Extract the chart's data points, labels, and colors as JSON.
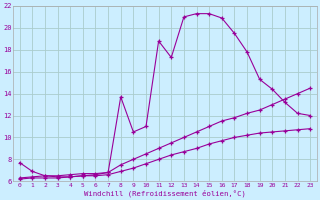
{
  "xlabel": "Windchill (Refroidissement éolien,°C)",
  "bg_color": "#cceeff",
  "grid_color": "#aacccc",
  "line_color": "#990099",
  "xlim": [
    -0.5,
    23.5
  ],
  "ylim": [
    6,
    22
  ],
  "yticks": [
    6,
    8,
    10,
    12,
    14,
    16,
    18,
    20,
    22
  ],
  "xticks": [
    0,
    1,
    2,
    3,
    4,
    5,
    6,
    7,
    8,
    9,
    10,
    11,
    12,
    13,
    14,
    15,
    16,
    17,
    18,
    19,
    20,
    21,
    22,
    23
  ],
  "series1_x": [
    0,
    1,
    2,
    3,
    4,
    5,
    6,
    7,
    8,
    9,
    10,
    11,
    12,
    13,
    14,
    15,
    16,
    17,
    18,
    19,
    20,
    21,
    22,
    23
  ],
  "series1_y": [
    7.7,
    6.9,
    6.5,
    6.4,
    6.4,
    6.5,
    6.6,
    6.8,
    13.7,
    10.5,
    11.0,
    18.8,
    17.3,
    21.0,
    21.3,
    21.3,
    20.9,
    19.5,
    17.8,
    15.3,
    14.4,
    13.2,
    12.2,
    12.0
  ],
  "series2_x": [
    0,
    1,
    2,
    3,
    4,
    5,
    6,
    7,
    8,
    9,
    10,
    11,
    12,
    13,
    14,
    15,
    16,
    17,
    18,
    19,
    20,
    21,
    22,
    23
  ],
  "series2_y": [
    6.3,
    6.4,
    6.5,
    6.5,
    6.6,
    6.7,
    6.7,
    6.8,
    7.5,
    8.0,
    8.5,
    9.0,
    9.5,
    10.0,
    10.5,
    11.0,
    11.5,
    11.8,
    12.2,
    12.5,
    13.0,
    13.5,
    14.0,
    14.5
  ],
  "series3_x": [
    0,
    1,
    2,
    3,
    4,
    5,
    6,
    7,
    8,
    9,
    10,
    11,
    12,
    13,
    14,
    15,
    16,
    17,
    18,
    19,
    20,
    21,
    22,
    23
  ],
  "series3_y": [
    6.2,
    6.3,
    6.3,
    6.3,
    6.4,
    6.5,
    6.5,
    6.6,
    6.9,
    7.2,
    7.6,
    8.0,
    8.4,
    8.7,
    9.0,
    9.4,
    9.7,
    10.0,
    10.2,
    10.4,
    10.5,
    10.6,
    10.7,
    10.8
  ]
}
